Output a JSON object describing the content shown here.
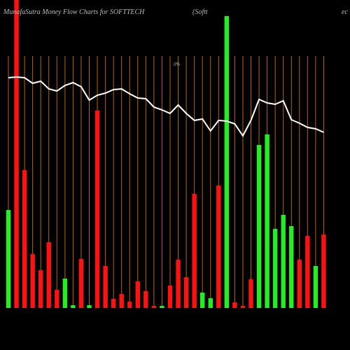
{
  "chart_data": {
    "type": "bar",
    "title": "MunafaSutra  Money Flow  Charts for SOFTTECH",
    "subtitle": "(Softt",
    "subtitle_tail": "ec",
    "annotation": "0%",
    "ylim": [
      0,
      440
    ],
    "values": [
      140,
      440,
      197,
      77,
      54,
      94,
      26,
      42,
      4,
      70,
      4,
      282,
      60,
      13,
      20,
      9,
      38,
      24,
      3,
      3,
      32,
      69,
      44,
      163,
      22,
      14,
      175,
      417,
      8,
      3,
      41,
      233,
      248,
      113,
      133,
      117,
      69,
      103,
      60,
      105
    ],
    "colors": [
      "g",
      "r",
      "r",
      "r",
      "r",
      "r",
      "r",
      "g",
      "g",
      "r",
      "g",
      "r",
      "r",
      "r",
      "r",
      "r",
      "r",
      "r",
      "r",
      "g",
      "r",
      "r",
      "r",
      "r",
      "g",
      "g",
      "r",
      "g",
      "r",
      "r",
      "r",
      "g",
      "g",
      "g",
      "g",
      "g",
      "r",
      "r",
      "g",
      "r"
    ],
    "up_color": "#22ee22",
    "down_color": "#ff1111",
    "line_color": "#ffffff",
    "grid_color": "#b8650f",
    "line_values": [
      329,
      330,
      329,
      321,
      324,
      313,
      310,
      318,
      322,
      316,
      297,
      304,
      307,
      312,
      313,
      306,
      300,
      299,
      287,
      283,
      278,
      290,
      278,
      268,
      270,
      253,
      268,
      267,
      263,
      246,
      268,
      298,
      293,
      291,
      296,
      269,
      264,
      258,
      256,
      251
    ]
  }
}
